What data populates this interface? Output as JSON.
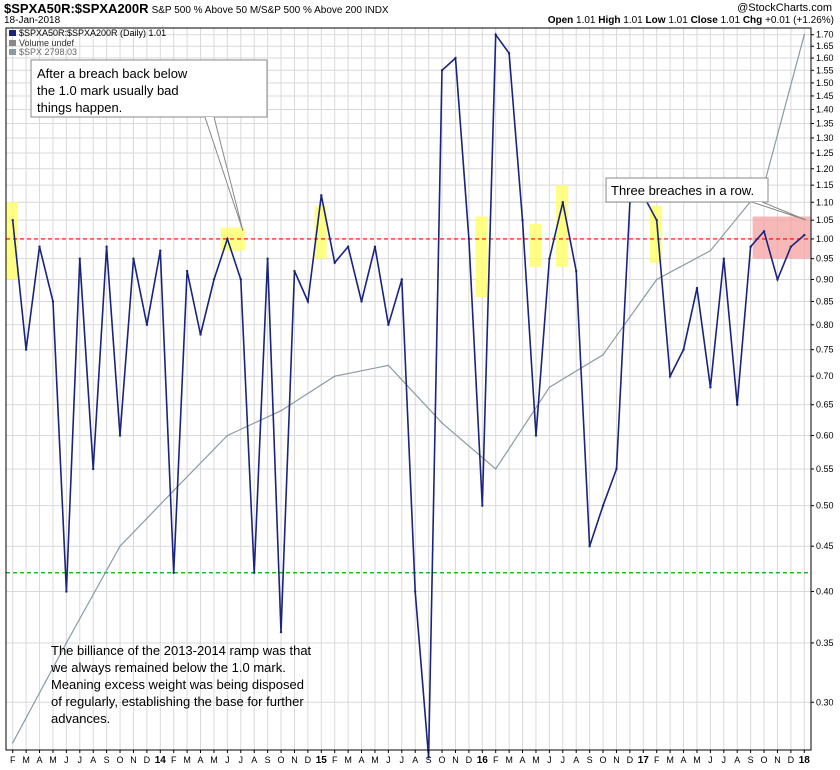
{
  "header": {
    "symbol": "$SPXA50R:$SPXA200R",
    "description": "S&P 500 % Above 50 M/S&P 500 % Above 200 INDX",
    "logo": "@StockCharts.com",
    "date": "18-Jan-2018",
    "open_label": "Open",
    "open_value": "1.01",
    "high_label": "High",
    "high_value": "1.01",
    "low_label": "Low",
    "low_value": "1.01",
    "close_label": "Close",
    "close_value": "1.01",
    "chg_label": "Chg",
    "chg_value": "+0.01 (+1.26%)"
  },
  "legend": {
    "series1": "$SPXA50R:$SPXA200R (Daily) 1.01",
    "series2": "Volume undef",
    "series3": "$SPX 2798.03"
  },
  "annotations": {
    "a1_line1": "After a breach back below",
    "a1_line2": "the 1.0 mark usually bad",
    "a1_line3": "things happen.",
    "a2": "Three breaches in a row.",
    "a3_line1": "The billiance of the 2013-2014 ramp was that",
    "a3_line2": "we always remained below the 1.0 mark.",
    "a3_line3": "Meaning excess weight was being disposed",
    "a3_line4": "of regularly, establishing the base for further",
    "a3_line5": "advances."
  },
  "colors": {
    "ratio_line": "#1a237e",
    "spx_line": "#8a9aa3",
    "ref_red": "#ff0000",
    "ref_green": "#00aa00",
    "highlight_yellow": "#ffff66",
    "highlight_red": "#f4a0a0",
    "grid": "#d9d9d9"
  },
  "chart_data": {
    "type": "line",
    "y_scale": "log",
    "ylim": [
      0.265,
      1.73
    ],
    "y_ticks": [
      "1.70",
      "1.65",
      "1.60",
      "1.55",
      "1.50",
      "1.45",
      "1.40",
      "1.35",
      "1.30",
      "1.25",
      "1.20",
      "1.15",
      "1.10",
      "1.05",
      "1.00",
      "0.95",
      "0.90",
      "0.85",
      "0.80",
      "0.75",
      "0.70",
      "0.65",
      "0.60",
      "0.55",
      "0.50",
      "0.45",
      "0.40",
      "0.35",
      "0.30"
    ],
    "x_ticks": [
      "F",
      "M",
      "A",
      "M",
      "J",
      "J",
      "A",
      "S",
      "O",
      "N",
      "D",
      "14",
      "F",
      "M",
      "A",
      "M",
      "J",
      "J",
      "A",
      "S",
      "O",
      "N",
      "D",
      "15",
      "F",
      "M",
      "A",
      "M",
      "J",
      "J",
      "A",
      "S",
      "O",
      "N",
      "D",
      "16",
      "F",
      "M",
      "A",
      "M",
      "J",
      "J",
      "A",
      "S",
      "O",
      "N",
      "D",
      "17",
      "F",
      "M",
      "A",
      "M",
      "J",
      "J",
      "A",
      "S",
      "O",
      "N",
      "D",
      "18"
    ],
    "reference_lines": [
      1.0,
      0.42
    ],
    "series": [
      {
        "name": "$SPXA50R:$SPXA200R (Daily) 1.01",
        "x": [
          "2013-02",
          "2013-03",
          "2013-04",
          "2013-05",
          "2013-06",
          "2013-07",
          "2013-08",
          "2013-09",
          "2013-10",
          "2013-11",
          "2013-12",
          "2014-01",
          "2014-02",
          "2014-03",
          "2014-04",
          "2014-05",
          "2014-06",
          "2014-07",
          "2014-08",
          "2014-09",
          "2014-10",
          "2014-11",
          "2014-12",
          "2015-01",
          "2015-02",
          "2015-03",
          "2015-04",
          "2015-05",
          "2015-06",
          "2015-07",
          "2015-08",
          "2015-09",
          "2015-10",
          "2015-11",
          "2015-12",
          "2016-01",
          "2016-02",
          "2016-03",
          "2016-04",
          "2016-05",
          "2016-06",
          "2016-07",
          "2016-08",
          "2016-09",
          "2016-10",
          "2016-11",
          "2016-12",
          "2017-01",
          "2017-02",
          "2017-03",
          "2017-04",
          "2017-05",
          "2017-06",
          "2017-07",
          "2017-08",
          "2017-09",
          "2017-10",
          "2017-11",
          "2017-12",
          "2018-01"
        ],
        "y": [
          1.05,
          0.75,
          0.98,
          0.85,
          0.4,
          0.95,
          0.55,
          0.98,
          0.6,
          0.95,
          0.8,
          0.97,
          0.42,
          0.92,
          0.78,
          0.9,
          1.0,
          0.9,
          0.42,
          0.95,
          0.36,
          0.92,
          0.85,
          1.12,
          0.94,
          0.98,
          0.85,
          0.98,
          0.8,
          0.9,
          0.4,
          0.26,
          1.55,
          1.6,
          1.0,
          0.5,
          1.7,
          1.62,
          1.05,
          0.6,
          0.95,
          1.1,
          0.92,
          0.45,
          0.5,
          0.55,
          1.1,
          1.12,
          1.05,
          0.7,
          0.75,
          0.88,
          0.68,
          0.95,
          0.65,
          0.98,
          1.02,
          0.9,
          0.98,
          1.01
        ]
      },
      {
        "name": "$SPX 2798.03",
        "x": [
          "2013-02",
          "2013-06",
          "2013-10",
          "2014-02",
          "2014-06",
          "2014-10",
          "2015-02",
          "2015-06",
          "2015-10",
          "2016-02",
          "2016-06",
          "2016-10",
          "2017-02",
          "2017-06",
          "2017-10",
          "2018-01"
        ],
        "y": [
          0.27,
          0.35,
          0.45,
          0.52,
          0.6,
          0.64,
          0.7,
          0.72,
          0.62,
          0.55,
          0.68,
          0.74,
          0.9,
          0.97,
          1.15,
          1.7
        ]
      }
    ]
  }
}
